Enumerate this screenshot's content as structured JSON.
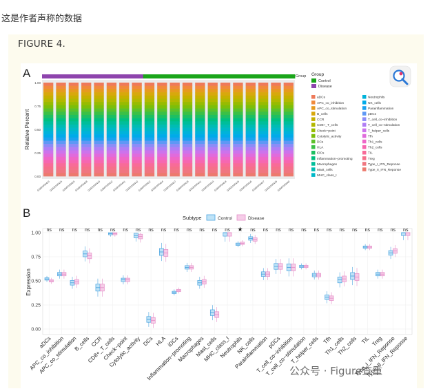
{
  "intro_text": "这是作者声称的数据",
  "figure_title": "FIGURE 4.",
  "watermark": "公众号 · Figure查重",
  "colors": {
    "control": "#4aa3df",
    "disease": "#e58fc8",
    "group_control": "#1aa51a",
    "group_disease": "#8e44ad"
  },
  "panel_a": {
    "label": "A",
    "ylabel": "Relative Percent",
    "group_legend": {
      "title": "Group",
      "items": [
        {
          "name": "Control",
          "color": "#1aa51a"
        },
        {
          "name": "Disease",
          "color": "#8e44ad"
        }
      ]
    },
    "group_bar_label": "Group",
    "samples": [
      "GSM7050423",
      "GSM7050425",
      "GSM7050426",
      "GSM7050428",
      "GSM7050430",
      "GSM7050432",
      "GSM7050441",
      "GSM7050442",
      "GSM7050422",
      "GSM7050424",
      "GSM7050427",
      "GSM7050429",
      "GSM7050431",
      "GSM7050433",
      "GSM7050434",
      "GSM7050435",
      "GSM7050436",
      "GSM7050437",
      "GSM7050438",
      "GSM7050440"
    ],
    "groups": [
      "Disease",
      "Disease",
      "Disease",
      "Disease",
      "Disease",
      "Disease",
      "Disease",
      "Disease",
      "Control",
      "Control",
      "Control",
      "Control",
      "Control",
      "Control",
      "Control",
      "Control",
      "Control",
      "Control",
      "Control",
      "Control"
    ],
    "yticks": [
      "0.00",
      "0.25",
      "0.50",
      "0.75",
      "1.00"
    ],
    "legend_col1": [
      "aDCs",
      "APC_co_inhibition",
      "APC_co_stimulation",
      "B_cells",
      "CCR",
      "CD8+_T_cells",
      "Check−point",
      "Cytolytic_activity",
      "DCs",
      "HLA",
      "iDCs",
      "Inflammation−promoting",
      "Macrophages",
      "Mast_cells",
      "MHC_class_I"
    ],
    "legend_col2": [
      "Neutrophils",
      "NK_cells",
      "Parainflammation",
      "pDCs",
      "T_cell_co−inhibition",
      "T_cell_co−stimulation",
      "T_helper_cells",
      "Tfh",
      "Th1_cells",
      "Th2_cells",
      "TIL",
      "Treg",
      "Type_I_IFN_Reponse",
      "Type_II_IFN_Reponse"
    ],
    "layer_colors": [
      "#ee7a5a",
      "#f08a3c",
      "#e69a1f",
      "#d8a80c",
      "#c6b000",
      "#b2b800",
      "#98bb00",
      "#7cbe0a",
      "#5cc02a",
      "#3bc046",
      "#1ebf62",
      "#00bf7f",
      "#00be9a",
      "#00bcb3",
      "#00b8c8",
      "#00b3da",
      "#00abe8",
      "#1aa2f0",
      "#5e98f5",
      "#8c8cf7",
      "#b07ef5",
      "#cc73ec",
      "#e06bdc",
      "#ee67c8",
      "#f667b0",
      "#f86b98",
      "#f5708a",
      "#f07680",
      "#ec7a6e"
    ]
  },
  "chart_data": {
    "type": "box",
    "panel": "B",
    "legend_title": "Subtype",
    "xlabel": "",
    "ylabel": "Expression",
    "ylim": [
      0,
      1
    ],
    "yticks": [
      "0.00",
      "0.25",
      "0.50",
      "0.75",
      "1.00"
    ],
    "categories": [
      "aDCs",
      "APC_co_inhibition",
      "APC_co_stimulation",
      "B_cells",
      "CCR",
      "CD8+_T_cells",
      "Check−point",
      "Cytolytic_activity",
      "DCs",
      "HLA",
      "iDCs",
      "Inflammation−promoting",
      "Macrophages",
      "Mast_cells",
      "MHC_class_I",
      "Neutrophils",
      "NK_cells",
      "Parainflammation",
      "pDCs",
      "T_cell_co−inhibition",
      "T_cell_co−stimulation",
      "T_helper_cells",
      "Tfh",
      "Th1_cells",
      "Th2_cells",
      "TIL",
      "Treg",
      "Type_I_IFN_Reponse",
      "Type_II_IFN_Reponse"
    ],
    "significance": [
      "ns",
      "ns",
      "ns",
      "ns",
      "ns",
      "ns",
      "ns",
      "ns",
      "ns",
      "ns",
      "ns",
      "ns",
      "ns",
      "ns",
      "ns",
      "★",
      "ns",
      "ns",
      "ns",
      "ns",
      "ns",
      "ns",
      "ns",
      "ns",
      "ns",
      "ns",
      "ns",
      "ns",
      "ns"
    ],
    "series": [
      {
        "name": "Control",
        "values": [
          0.52,
          0.57,
          0.48,
          0.78,
          0.43,
          0.99,
          0.51,
          0.97,
          0.1,
          0.8,
          0.38,
          0.64,
          0.48,
          0.17,
          1.0,
          0.88,
          0.94,
          0.57,
          0.65,
          0.64,
          0.65,
          0.56,
          0.33,
          0.51,
          0.55,
          0.85,
          0.57,
          0.79,
          1.0
        ]
      },
      {
        "name": "Disease",
        "values": [
          0.5,
          0.57,
          0.49,
          0.76,
          0.43,
          0.99,
          0.51,
          0.96,
          0.09,
          0.79,
          0.4,
          0.64,
          0.49,
          0.15,
          1.0,
          0.89,
          0.93,
          0.57,
          0.65,
          0.64,
          0.65,
          0.56,
          0.32,
          0.52,
          0.54,
          0.85,
          0.57,
          0.81,
          1.0
        ]
      }
    ]
  }
}
